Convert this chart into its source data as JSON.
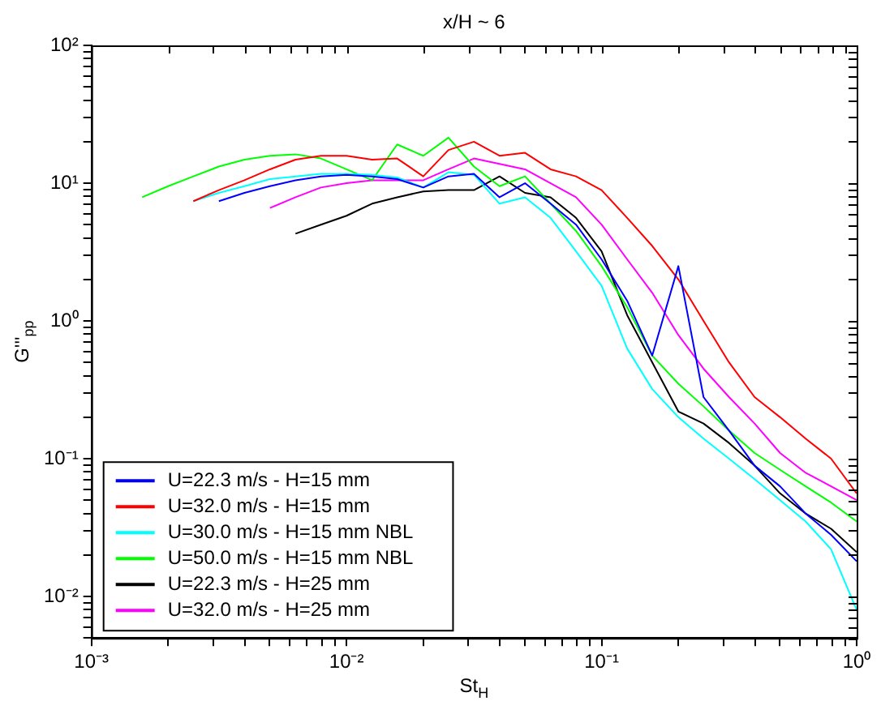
{
  "chart_data": {
    "type": "line",
    "title": "x/H ~ 6",
    "xlabel": "St$_{H}$",
    "ylabel": "G'''$_{pp}$",
    "log": "xy",
    "grid": false,
    "legend": "bottom left",
    "marker": "none",
    "line_style": "solid",
    "xlim": [
      0.001,
      1
    ],
    "ylim": [
      0.005,
      100
    ],
    "xticks": [
      {
        "value": 0.001,
        "label": "10⁻³"
      },
      {
        "value": 0.002,
        "label": null
      },
      {
        "value": 0.003,
        "label": null
      },
      {
        "value": 0.004,
        "label": null
      },
      {
        "value": 0.005,
        "label": null
      },
      {
        "value": 0.006,
        "label": null
      },
      {
        "value": 0.007,
        "label": null
      },
      {
        "value": 0.008,
        "label": null
      },
      {
        "value": 0.009,
        "label": null
      },
      {
        "value": 0.01,
        "label": "10⁻²"
      },
      {
        "value": 0.02,
        "label": null
      },
      {
        "value": 0.03,
        "label": null
      },
      {
        "value": 0.04,
        "label": null
      },
      {
        "value": 0.05,
        "label": null
      },
      {
        "value": 0.06,
        "label": null
      },
      {
        "value": 0.07,
        "label": null
      },
      {
        "value": 0.08,
        "label": null
      },
      {
        "value": 0.09,
        "label": null
      },
      {
        "value": 0.1,
        "label": "10⁻¹"
      },
      {
        "value": 0.2,
        "label": null
      },
      {
        "value": 0.3,
        "label": null
      },
      {
        "value": 0.4,
        "label": null
      },
      {
        "value": 0.5,
        "label": null
      },
      {
        "value": 0.6,
        "label": null
      },
      {
        "value": 0.7,
        "label": null
      },
      {
        "value": 0.8,
        "label": null
      },
      {
        "value": 0.9,
        "label": null
      },
      {
        "value": 1,
        "label": "10⁰"
      }
    ],
    "yticks": [
      {
        "value": 0.005,
        "label": null
      },
      {
        "value": 0.006,
        "label": null
      },
      {
        "value": 0.007,
        "label": null
      },
      {
        "value": 0.008,
        "label": null
      },
      {
        "value": 0.009,
        "label": null
      },
      {
        "value": 0.01,
        "label": "10⁻²"
      },
      {
        "value": 0.02,
        "label": null
      },
      {
        "value": 0.03,
        "label": null
      },
      {
        "value": 0.04,
        "label": null
      },
      {
        "value": 0.05,
        "label": null
      },
      {
        "value": 0.06,
        "label": null
      },
      {
        "value": 0.07,
        "label": null
      },
      {
        "value": 0.08,
        "label": null
      },
      {
        "value": 0.09,
        "label": null
      },
      {
        "value": 0.1,
        "label": "10⁻¹"
      },
      {
        "value": 0.2,
        "label": null
      },
      {
        "value": 0.3,
        "label": null
      },
      {
        "value": 0.4,
        "label": null
      },
      {
        "value": 0.5,
        "label": null
      },
      {
        "value": 0.6,
        "label": null
      },
      {
        "value": 0.7,
        "label": null
      },
      {
        "value": 0.8,
        "label": null
      },
      {
        "value": 0.9,
        "label": null
      },
      {
        "value": 1,
        "label": "10⁰"
      },
      {
        "value": 2,
        "label": null
      },
      {
        "value": 3,
        "label": null
      },
      {
        "value": 4,
        "label": null
      },
      {
        "value": 5,
        "label": null
      },
      {
        "value": 6,
        "label": null
      },
      {
        "value": 7,
        "label": null
      },
      {
        "value": 8,
        "label": null
      },
      {
        "value": 9,
        "label": null
      },
      {
        "value": 10,
        "label": "10¹"
      },
      {
        "value": 20,
        "label": null
      },
      {
        "value": 30,
        "label": null
      },
      {
        "value": 40,
        "label": null
      },
      {
        "value": 50,
        "label": null
      },
      {
        "value": 60,
        "label": null
      },
      {
        "value": 70,
        "label": null
      },
      {
        "value": 80,
        "label": null
      },
      {
        "value": 90,
        "label": null
      },
      {
        "value": 100,
        "label": "10²"
      }
    ],
    "x": [
      0.00158,
      0.002,
      0.00251,
      0.00316,
      0.00398,
      0.00501,
      0.00631,
      0.00794,
      0.01,
      0.0126,
      0.0158,
      0.02,
      0.0251,
      0.0316,
      0.0398,
      0.0501,
      0.0631,
      0.0794,
      0.1,
      0.126,
      0.158,
      0.2,
      0.251,
      0.316,
      0.398,
      0.501,
      0.631,
      0.794,
      1
    ],
    "series": [
      {
        "name": "U=22.3 m/s - H=15 mm",
        "color": "#0000ff",
        "values": [
          null,
          null,
          null,
          7.4,
          8.5,
          9.5,
          10.5,
          11.2,
          11.5,
          11.2,
          10.7,
          9.3,
          11.2,
          11.7,
          7.9,
          10,
          7.1,
          5,
          2.8,
          1.4,
          0.56,
          2.5,
          0.28,
          0.16,
          0.089,
          0.063,
          0.04,
          0.028,
          0.018
        ]
      },
      {
        "name": "U=32.0 m/s - H=15 mm",
        "color": "#ff0000",
        "values": [
          null,
          null,
          7.4,
          8.9,
          10.5,
          12.6,
          14.8,
          15.8,
          15.8,
          14.8,
          15.1,
          11.2,
          17.4,
          20,
          15.8,
          16.6,
          12.6,
          11.2,
          8.9,
          5.6,
          3.5,
          2,
          1,
          0.5,
          0.28,
          0.2,
          0.14,
          0.1,
          0.056
        ]
      },
      {
        "name": "U=30.0 m/s - H=15 mm NBL",
        "color": "#00ffff",
        "values": [
          null,
          null,
          7.4,
          8.5,
          9.5,
          10.7,
          11.2,
          11.7,
          11.7,
          11.5,
          11,
          9.3,
          12,
          11.5,
          7.1,
          7.9,
          5.6,
          3.2,
          1.8,
          0.63,
          0.32,
          0.2,
          0.14,
          0.1,
          0.071,
          0.05,
          0.035,
          0.022,
          0.008
        ]
      },
      {
        "name": "U=50.0 m/s - H=15 mm NBL",
        "color": "#00ff00",
        "values": [
          7.9,
          9.5,
          11.2,
          13.2,
          14.8,
          15.8,
          16.2,
          15.1,
          12.6,
          10.5,
          19.1,
          15.8,
          21.4,
          13.2,
          9.5,
          11.2,
          7.1,
          4.5,
          2.5,
          1.26,
          0.56,
          0.35,
          0.24,
          0.16,
          0.11,
          0.083,
          0.063,
          0.048,
          0.035
        ]
      },
      {
        "name": "U=22.3 m/s - H=25 mm",
        "color": "#000000",
        "values": [
          null,
          null,
          null,
          null,
          null,
          null,
          4.3,
          5,
          5.8,
          7.1,
          7.9,
          8.7,
          8.9,
          8.9,
          11.2,
          8.5,
          7.9,
          5.6,
          3.2,
          1.1,
          0.5,
          0.22,
          0.18,
          0.13,
          0.089,
          0.056,
          0.04,
          0.031,
          0.021
        ]
      },
      {
        "name": "U=32.0 m/s - H=25 mm",
        "color": "#ff00ff",
        "values": [
          null,
          null,
          null,
          null,
          null,
          6.6,
          7.9,
          9.3,
          10,
          10.5,
          10.5,
          10.5,
          12.6,
          15.1,
          13.8,
          12.6,
          10,
          7.9,
          5,
          2.8,
          1.6,
          0.79,
          0.45,
          0.28,
          0.18,
          0.11,
          0.079,
          0.063,
          0.05
        ]
      }
    ]
  }
}
